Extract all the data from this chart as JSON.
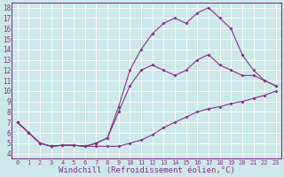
{
  "bg_color": "#cce8e8",
  "line_color": "#883388",
  "grid_color": "#ffffff",
  "xlabel": "Windchill (Refroidissement éolien,°C)",
  "xlim": [
    -0.5,
    23.5
  ],
  "ylim": [
    3.5,
    18.5
  ],
  "xticks": [
    0,
    1,
    2,
    3,
    4,
    5,
    6,
    7,
    8,
    9,
    10,
    11,
    12,
    13,
    14,
    15,
    16,
    17,
    18,
    19,
    20,
    21,
    22,
    23
  ],
  "yticks": [
    4,
    5,
    6,
    7,
    8,
    9,
    10,
    11,
    12,
    13,
    14,
    15,
    16,
    17,
    18
  ],
  "line1_x": [
    0,
    1,
    2,
    3,
    4,
    5,
    6,
    7,
    8,
    9,
    10,
    11,
    12,
    13,
    14,
    15,
    16,
    17,
    18,
    19,
    20,
    21,
    22,
    23
  ],
  "line1_y": [
    7.0,
    6.0,
    5.0,
    4.7,
    4.8,
    4.8,
    4.7,
    4.7,
    4.7,
    4.7,
    5.0,
    5.3,
    5.8,
    6.5,
    7.0,
    7.5,
    8.0,
    8.3,
    8.5,
    8.8,
    9.0,
    9.3,
    9.6,
    10.0
  ],
  "line2_x": [
    0,
    1,
    2,
    3,
    4,
    5,
    6,
    7,
    8,
    9,
    10,
    11,
    12,
    13,
    14,
    15,
    16,
    17,
    18,
    19,
    20,
    21,
    22,
    23
  ],
  "line2_y": [
    7.0,
    6.0,
    5.0,
    4.7,
    4.8,
    4.8,
    4.7,
    5.0,
    5.5,
    8.0,
    10.5,
    12.0,
    12.5,
    12.0,
    11.5,
    12.0,
    13.0,
    13.5,
    12.5,
    12.0,
    11.5,
    11.5,
    11.0,
    10.5
  ],
  "line3_x": [
    0,
    1,
    2,
    3,
    4,
    5,
    6,
    7,
    8,
    9,
    10,
    11,
    12,
    13,
    14,
    15,
    16,
    17,
    18,
    19,
    20,
    21,
    22,
    23
  ],
  "line3_y": [
    7.0,
    6.0,
    5.0,
    4.7,
    4.8,
    4.8,
    4.7,
    5.0,
    5.5,
    8.5,
    12.0,
    14.0,
    15.5,
    16.5,
    17.0,
    16.5,
    17.5,
    18.0,
    17.0,
    16.0,
    13.5,
    12.0,
    11.0,
    10.5
  ]
}
